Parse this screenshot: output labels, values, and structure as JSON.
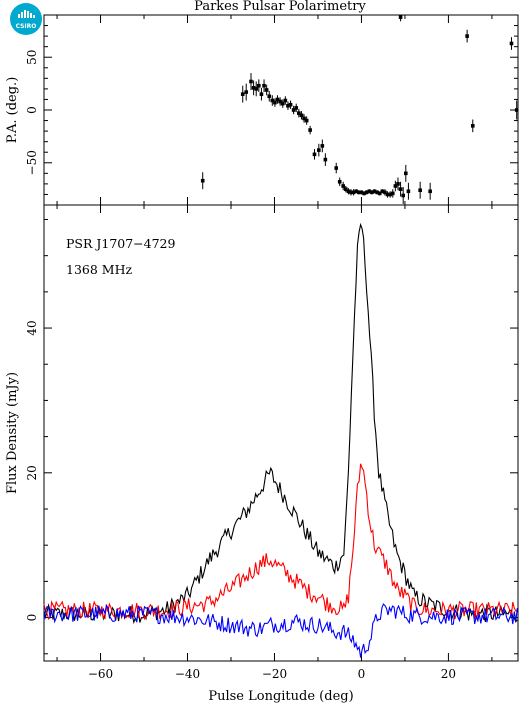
{
  "chart_data": [
    {
      "type": "scatter",
      "title": "Parkes Pulsar Polarimetry",
      "xlabel": "",
      "ylabel": "P.A. (deg.)",
      "xlim": [
        -73,
        36
      ],
      "ylim": [
        -90,
        90
      ],
      "yticks": [
        -50,
        0,
        50
      ],
      "y_tick_labels": [
        "−50",
        "0",
        "50"
      ],
      "error_bars": true,
      "series": [
        {
          "color": "#000000",
          "x": [
            -36.5,
            -27.3,
            -26.5,
            -25.4,
            -24.8,
            -24.2,
            -23.6,
            -23.0,
            -22.4,
            -21.8,
            -21.2,
            -20.5,
            -19.9,
            -19.3,
            -18.7,
            -18.1,
            -17.5,
            -16.9,
            -16.3,
            -15.6,
            -15.0,
            -14.4,
            -13.8,
            -13.2,
            -12.6,
            -11.8,
            -10.8,
            -9.8,
            -9.0,
            -8.3,
            -5.8,
            -5.0,
            -4.2,
            -3.6,
            -3.0,
            -2.4,
            -1.8,
            -1.2,
            -0.6,
            0.0,
            0.6,
            1.2,
            1.8,
            2.4,
            3.0,
            3.6,
            4.2,
            4.8,
            5.4,
            6.0,
            6.6,
            7.2,
            7.8,
            8.4,
            9.0,
            9.6,
            10.2,
            10.8,
            13.5,
            15.8,
            9.0,
            24.3,
            25.6,
            34.5,
            35.7
          ],
          "y": [
            -67,
            15,
            17,
            27,
            21,
            20,
            23,
            15,
            23,
            19,
            13,
            9,
            7,
            10,
            8,
            6,
            9,
            4,
            5,
            0,
            2,
            -3,
            -5,
            -8,
            -10,
            -19,
            -42,
            -38,
            -34,
            -47,
            -55,
            -68,
            -72,
            -75,
            -77,
            -78,
            -78,
            -77,
            -78,
            -78,
            -79,
            -78,
            -77,
            -78,
            -77,
            -78,
            -79,
            -77,
            -78,
            -80,
            -80,
            -79,
            -72,
            -70,
            -75,
            -81,
            -60,
            -77,
            -76,
            -77,
            88,
            70,
            -15,
            63,
            0
          ],
          "y_err": [
            8,
            8,
            8,
            8,
            7,
            7,
            6,
            6,
            6,
            5,
            5,
            5,
            4,
            4,
            4,
            4,
            4,
            4,
            4,
            4,
            4,
            4,
            4,
            4,
            4,
            4,
            5,
            6,
            6,
            6,
            5,
            4,
            4,
            3,
            3,
            3,
            3,
            2,
            2,
            2,
            2,
            2,
            2,
            2,
            2,
            2,
            2,
            2,
            3,
            3,
            3,
            4,
            5,
            6,
            7,
            8,
            8,
            8,
            8,
            8,
            4,
            6,
            6,
            6,
            9
          ]
        }
      ]
    },
    {
      "type": "line",
      "title": "",
      "xlabel": "Pulse Longitude (deg)",
      "ylabel": "Flux Density (mJy)",
      "xlim": [
        -73,
        36
      ],
      "ylim": [
        -6,
        57
      ],
      "xticks": [
        -60,
        -40,
        -20,
        0,
        20
      ],
      "x_tick_labels": [
        "−60",
        "−40",
        "−20",
        "0",
        "20"
      ],
      "yticks": [
        0,
        20,
        40
      ],
      "y_tick_labels": [
        "0",
        "20",
        "40"
      ],
      "annotations": [
        "PSR J1707−4729",
        "1368 MHz"
      ],
      "series": [
        {
          "color": "#000000",
          "x": [
            -73,
            -60,
            -50,
            -45,
            -40,
            -35,
            -30,
            -26,
            -23,
            -21,
            -18,
            -15,
            -12,
            -10,
            -8,
            -6,
            -4,
            -3,
            -2,
            -1,
            0,
            1,
            2,
            3,
            4,
            6,
            8,
            10,
            12,
            15,
            20,
            25,
            30,
            36
          ],
          "y": [
            0.5,
            0.5,
            0.5,
            1,
            3,
            8,
            12,
            15,
            18,
            20,
            17,
            14,
            11,
            9,
            8,
            7,
            9,
            20,
            36,
            50,
            55,
            48,
            38,
            28,
            20,
            14,
            9,
            6,
            3,
            2,
            1,
            0.5,
            0.5,
            0.5
          ]
        },
        {
          "color": "#ff0000",
          "x": [
            -73,
            -60,
            -50,
            -45,
            -40,
            -35,
            -30,
            -26,
            -23,
            -21,
            -18,
            -15,
            -12,
            -10,
            -8,
            -6,
            -4,
            -3,
            -2,
            -1,
            0,
            1,
            2,
            3,
            4,
            6,
            8,
            10,
            12,
            15,
            20,
            25,
            30,
            36
          ],
          "y": [
            1,
            1,
            1,
            1,
            1.5,
            2,
            4,
            6,
            7.5,
            8,
            6.5,
            5,
            3.5,
            3,
            2,
            1.5,
            1,
            3,
            9,
            17,
            22,
            18,
            13,
            10,
            9,
            7,
            4,
            3,
            1.5,
            1,
            1,
            1,
            1,
            1
          ]
        },
        {
          "color": "#0000ff",
          "x": [
            -73,
            -60,
            -50,
            -45,
            -40,
            -35,
            -30,
            -26,
            -23,
            -21,
            -18,
            -15,
            -12,
            -10,
            -8,
            -6,
            -4,
            -3,
            -2,
            -1,
            0,
            1,
            2,
            3,
            4,
            6,
            8,
            10,
            12,
            15,
            20,
            25,
            30,
            36
          ],
          "y": [
            0.5,
            0.5,
            0.5,
            0.3,
            0,
            -0.5,
            -1,
            -1.5,
            -1.5,
            -1,
            -0.8,
            -0.5,
            -1,
            -1,
            -1.5,
            -2,
            -2,
            -2.5,
            -3,
            -4,
            -5,
            -4,
            -3,
            -1,
            0.5,
            1,
            1,
            0.5,
            0.3,
            0.2,
            0.2,
            0.2,
            0.2,
            0.2
          ]
        }
      ]
    }
  ],
  "logo": {
    "text": "CSIRO",
    "color": "#00a9ce"
  }
}
